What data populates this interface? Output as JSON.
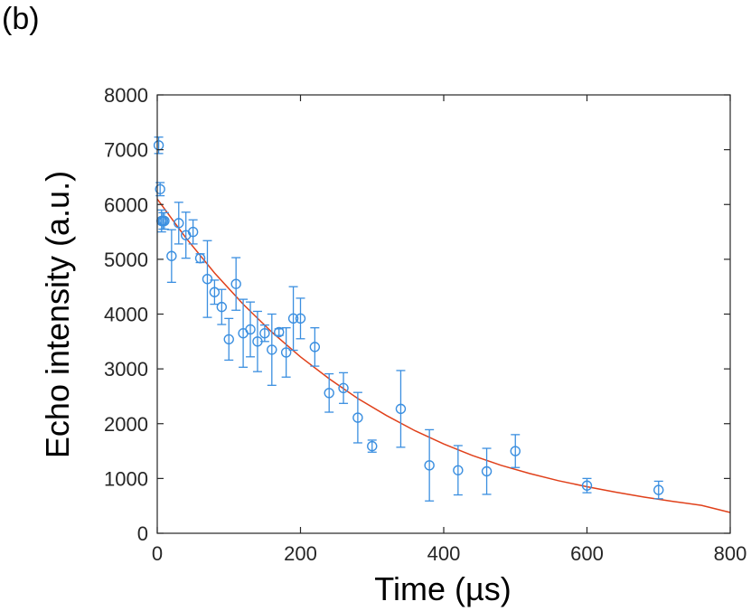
{
  "panel_label": "(b)",
  "chart_data": {
    "type": "scatter",
    "title": "",
    "xlabel": "Time (µs)",
    "ylabel": "Echo intensity (a.u.)",
    "xlim": [
      0,
      800
    ],
    "ylim": [
      0,
      8000
    ],
    "xticks": [
      0,
      200,
      400,
      600,
      800
    ],
    "yticks": [
      0,
      1000,
      2000,
      3000,
      4000,
      5000,
      6000,
      7000,
      8000
    ],
    "grid": false,
    "legend": "none",
    "colors": {
      "points": "#3b8fe0",
      "fit": "#e0401a",
      "axes": "#262626"
    },
    "series": [
      {
        "type": "scatter-errorbar",
        "x": [
          2,
          4,
          6,
          8,
          10,
          20,
          30,
          40,
          50,
          60,
          70,
          80,
          90,
          100,
          110,
          120,
          130,
          140,
          150,
          160,
          170,
          180,
          190,
          200,
          220,
          240,
          260,
          280,
          300,
          340,
          380,
          420,
          460,
          500,
          600,
          700
        ],
        "y": [
          7080,
          6280,
          5700,
          5700,
          5700,
          5060,
          5660,
          5440,
          5500,
          5020,
          4640,
          4400,
          4130,
          3540,
          4550,
          3650,
          3720,
          3500,
          3650,
          3350,
          3670,
          3300,
          3920,
          3920,
          3400,
          2560,
          2650,
          2110,
          1590,
          2270,
          1240,
          1150,
          1130,
          1500,
          870,
          790
        ],
        "yerr": [
          150,
          120,
          200,
          150,
          150,
          480,
          380,
          420,
          220,
          80,
          700,
          220,
          320,
          380,
          480,
          620,
          500,
          550,
          150,
          650,
          60,
          450,
          580,
          370,
          350,
          350,
          280,
          460,
          110,
          700,
          650,
          450,
          420,
          300,
          130,
          160
        ]
      },
      {
        "type": "line",
        "x": [
          0,
          40,
          80,
          120,
          160,
          200,
          240,
          280,
          320,
          360,
          400,
          440,
          480,
          520,
          560,
          600,
          640,
          680,
          720,
          760,
          800
        ],
        "y": [
          6100,
          5390,
          4750,
          4180,
          3670,
          3220,
          2820,
          2460,
          2150,
          1870,
          1630,
          1420,
          1240,
          1090,
          960,
          850,
          750,
          660,
          580,
          510,
          380
        ]
      }
    ]
  }
}
